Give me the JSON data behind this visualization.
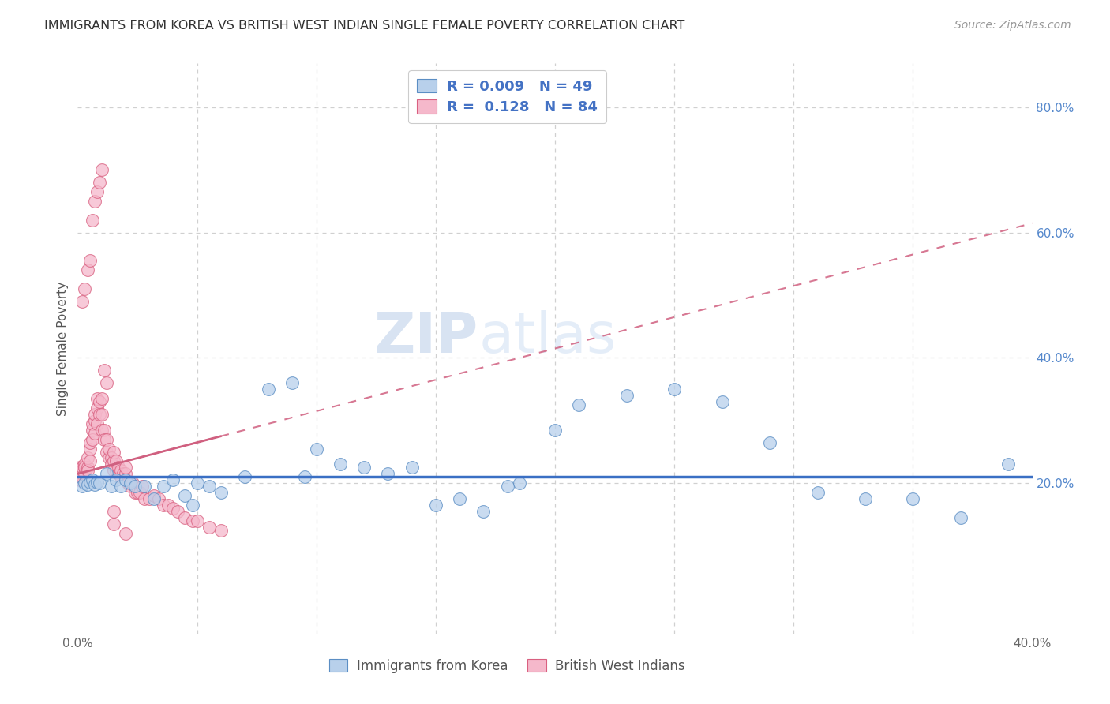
{
  "title": "IMMIGRANTS FROM KOREA VS BRITISH WEST INDIAN SINGLE FEMALE POVERTY CORRELATION CHART",
  "source": "Source: ZipAtlas.com",
  "ylabel": "Single Female Poverty",
  "xlim": [
    0.0,
    0.4
  ],
  "ylim": [
    -0.04,
    0.87
  ],
  "yticks": [
    0.2,
    0.4,
    0.6,
    0.8
  ],
  "ytick_labels": [
    "20.0%",
    "40.0%",
    "60.0%",
    "80.0%"
  ],
  "watermark_zip": "ZIP",
  "watermark_atlas": "atlas",
  "legend_R_korea": "0.009",
  "legend_N_korea": "49",
  "legend_R_bwi": "0.128",
  "legend_N_bwi": "84",
  "korea_face_color": "#b8d0eb",
  "bwi_face_color": "#f5b8cb",
  "korea_edge_color": "#5b8ec4",
  "bwi_edge_color": "#d96080",
  "korea_line_color": "#3a6fc4",
  "bwi_line_color": "#d06080",
  "grid_color": "#d0d0d0",
  "korea_x": [
    0.002,
    0.003,
    0.004,
    0.005,
    0.006,
    0.007,
    0.008,
    0.009,
    0.012,
    0.014,
    0.016,
    0.018,
    0.02,
    0.022,
    0.024,
    0.028,
    0.032,
    0.036,
    0.04,
    0.045,
    0.05,
    0.055,
    0.06,
    0.07,
    0.08,
    0.09,
    0.1,
    0.11,
    0.12,
    0.13,
    0.14,
    0.15,
    0.16,
    0.17,
    0.18,
    0.2,
    0.21,
    0.23,
    0.25,
    0.27,
    0.29,
    0.31,
    0.33,
    0.35,
    0.37,
    0.39,
    0.185,
    0.095,
    0.048
  ],
  "korea_y": [
    0.195,
    0.2,
    0.198,
    0.202,
    0.205,
    0.198,
    0.202,
    0.2,
    0.215,
    0.195,
    0.205,
    0.195,
    0.205,
    0.2,
    0.195,
    0.195,
    0.175,
    0.195,
    0.205,
    0.18,
    0.2,
    0.195,
    0.185,
    0.21,
    0.35,
    0.36,
    0.255,
    0.23,
    0.225,
    0.215,
    0.225,
    0.165,
    0.175,
    0.155,
    0.195,
    0.285,
    0.325,
    0.34,
    0.35,
    0.33,
    0.265,
    0.185,
    0.175,
    0.175,
    0.145,
    0.23,
    0.2,
    0.21,
    0.165
  ],
  "bwi_x": [
    0.001,
    0.001,
    0.001,
    0.002,
    0.002,
    0.002,
    0.002,
    0.003,
    0.003,
    0.003,
    0.003,
    0.004,
    0.004,
    0.004,
    0.005,
    0.005,
    0.005,
    0.006,
    0.006,
    0.006,
    0.007,
    0.007,
    0.007,
    0.008,
    0.008,
    0.008,
    0.009,
    0.009,
    0.01,
    0.01,
    0.01,
    0.011,
    0.011,
    0.012,
    0.012,
    0.013,
    0.013,
    0.014,
    0.014,
    0.015,
    0.015,
    0.015,
    0.016,
    0.016,
    0.017,
    0.017,
    0.018,
    0.018,
    0.019,
    0.02,
    0.02,
    0.021,
    0.022,
    0.023,
    0.024,
    0.025,
    0.026,
    0.027,
    0.028,
    0.03,
    0.032,
    0.034,
    0.036,
    0.038,
    0.04,
    0.042,
    0.045,
    0.048,
    0.05,
    0.055,
    0.06,
    0.002,
    0.003,
    0.004,
    0.005,
    0.006,
    0.007,
    0.008,
    0.009,
    0.01,
    0.011,
    0.012,
    0.015,
    0.015,
    0.02
  ],
  "bwi_y": [
    0.215,
    0.225,
    0.205,
    0.22,
    0.215,
    0.21,
    0.225,
    0.225,
    0.23,
    0.215,
    0.225,
    0.225,
    0.24,
    0.22,
    0.255,
    0.265,
    0.235,
    0.285,
    0.295,
    0.27,
    0.3,
    0.31,
    0.28,
    0.32,
    0.295,
    0.335,
    0.31,
    0.33,
    0.335,
    0.31,
    0.285,
    0.285,
    0.27,
    0.27,
    0.25,
    0.24,
    0.255,
    0.24,
    0.23,
    0.22,
    0.235,
    0.25,
    0.22,
    0.235,
    0.215,
    0.225,
    0.21,
    0.22,
    0.215,
    0.215,
    0.225,
    0.2,
    0.195,
    0.2,
    0.185,
    0.185,
    0.185,
    0.195,
    0.175,
    0.175,
    0.18,
    0.175,
    0.165,
    0.165,
    0.16,
    0.155,
    0.145,
    0.14,
    0.14,
    0.13,
    0.125,
    0.49,
    0.51,
    0.54,
    0.555,
    0.62,
    0.65,
    0.665,
    0.68,
    0.7,
    0.38,
    0.36,
    0.135,
    0.155,
    0.12
  ],
  "korea_trend_y0": 0.21,
  "korea_trend_y1": 0.21,
  "bwi_trend_x0": 0.0,
  "bwi_trend_x1": 0.4,
  "bwi_trend_y0": 0.215,
  "bwi_trend_y1": 0.615
}
